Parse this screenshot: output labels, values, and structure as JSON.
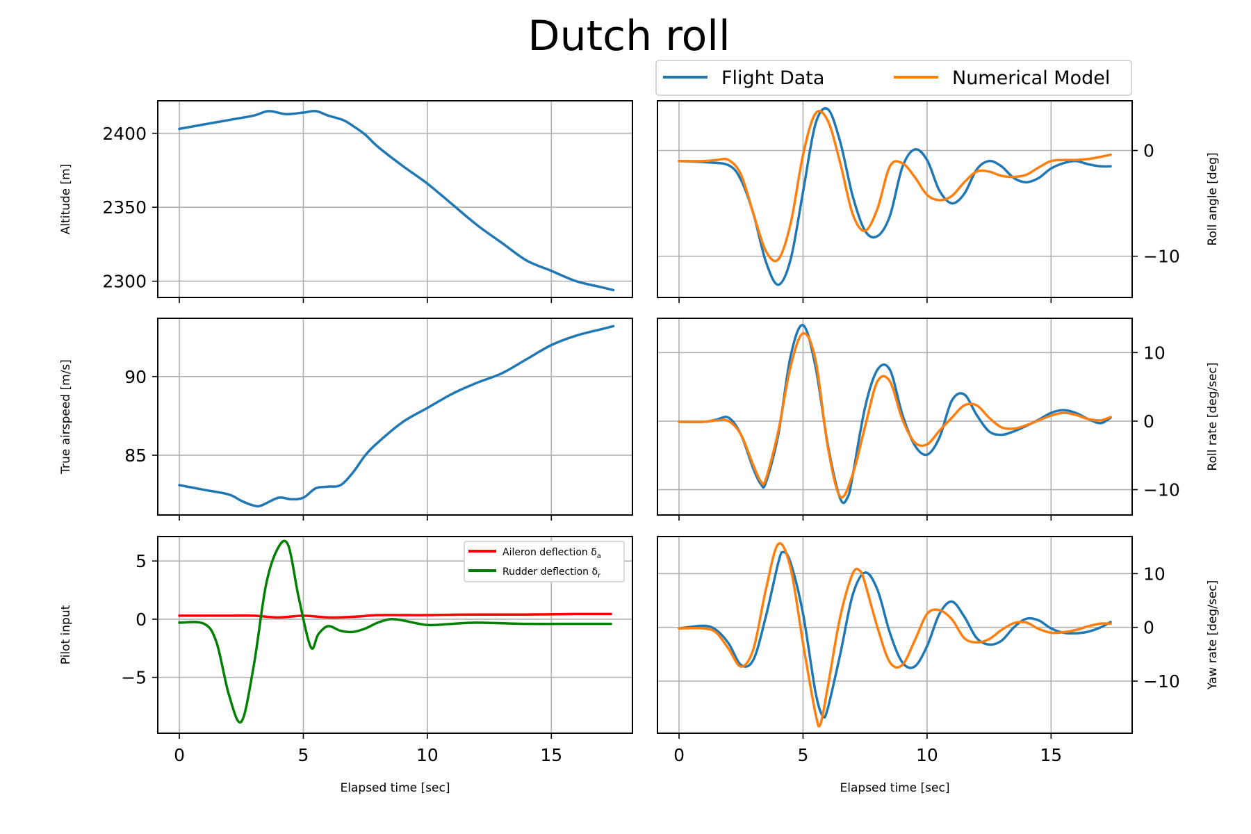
{
  "title": "Dutch roll",
  "legend_main": [
    {
      "label": "Flight Data",
      "color": "#1f77b4"
    },
    {
      "label": "Numerical Model",
      "color": "#ff7f0e"
    }
  ],
  "legend_pilot": [
    {
      "label": "Aileron deflection δ",
      "sub": "a",
      "color": "#ff0000"
    },
    {
      "label": "Rudder deflection δ",
      "sub": "r",
      "color": "#008000"
    }
  ],
  "chart_data": [
    {
      "id": "altitude",
      "type": "line",
      "ylabel": "Altitude [m]",
      "xlim": [
        -0.87,
        18.27
      ],
      "ylim": [
        2289,
        2422
      ],
      "yticks": [
        2300,
        2350,
        2400
      ],
      "ytick_labels": [
        "2300",
        "2350",
        "2400"
      ],
      "grid": true,
      "series": [
        {
          "name": "Flight Data",
          "color": "#1f77b4",
          "x": [
            0,
            1,
            2,
            3,
            3.6,
            4.3,
            5,
            5.5,
            6,
            6.6,
            7,
            7.5,
            8,
            9,
            10,
            11,
            12,
            13,
            14,
            15,
            16,
            17,
            17.5
          ],
          "y": [
            2403,
            2406,
            2409,
            2412,
            2415,
            2413,
            2414,
            2415,
            2412,
            2409,
            2405,
            2399,
            2391,
            2378,
            2366,
            2352,
            2338,
            2326,
            2314,
            2307,
            2300,
            2296,
            2294
          ]
        }
      ]
    },
    {
      "id": "roll-angle",
      "type": "line",
      "ylabel": "Roll angle [deg]",
      "xlim": [
        -0.87,
        18.27
      ],
      "ylim": [
        -13.9,
        4.7
      ],
      "yticks": [
        -10,
        0
      ],
      "ytick_labels": [
        "−10",
        "0"
      ],
      "grid": true,
      "series": [
        {
          "name": "Flight Data",
          "color": "#1f77b4",
          "x": [
            0,
            1,
            2,
            2.5,
            3,
            3.5,
            4,
            4.5,
            5,
            5.5,
            6,
            6.5,
            7,
            7.5,
            8,
            8.5,
            9,
            9.5,
            10,
            10.5,
            11,
            11.5,
            12,
            12.5,
            13,
            13.5,
            14,
            14.5,
            15,
            15.5,
            16,
            16.5,
            17,
            17.4
          ],
          "y": [
            -1,
            -1.1,
            -1.4,
            -2.8,
            -6,
            -10.5,
            -12.7,
            -10.3,
            -3.9,
            2.5,
            3.9,
            0.8,
            -4.3,
            -7.6,
            -8.1,
            -6.2,
            -1.6,
            0.1,
            -0.9,
            -3.8,
            -5,
            -4.1,
            -1.8,
            -1.0,
            -1.5,
            -2.6,
            -3,
            -2.6,
            -1.7,
            -1.2,
            -1.0,
            -1.3,
            -1.5,
            -1.5
          ]
        },
        {
          "name": "Numerical Model",
          "color": "#ff7f0e",
          "x": [
            0,
            1,
            1.5,
            2,
            2.5,
            3,
            3.5,
            4,
            4.5,
            5,
            5.5,
            6,
            6.5,
            7,
            7.5,
            8,
            8.5,
            9,
            9.5,
            10,
            10.5,
            11,
            11.5,
            12,
            12.5,
            13,
            13.5,
            14,
            14.5,
            15,
            15.5,
            16,
            16.5,
            17,
            17.4
          ],
          "y": [
            -1,
            -1,
            -0.9,
            -0.9,
            -2.3,
            -6,
            -9.5,
            -10.3,
            -6.9,
            -0.4,
            3.5,
            2.8,
            -1.2,
            -6,
            -7.6,
            -5.5,
            -1.5,
            -1.2,
            -2.5,
            -4.2,
            -4.7,
            -4.3,
            -3,
            -2.0,
            -2.0,
            -2.4,
            -2.5,
            -2.3,
            -1.6,
            -1.0,
            -0.9,
            -0.9,
            -0.8,
            -0.6,
            -0.4
          ]
        }
      ]
    },
    {
      "id": "airspeed",
      "type": "line",
      "ylabel": "True airspeed [m/s]",
      "xlim": [
        -0.87,
        18.27
      ],
      "ylim": [
        81.2,
        93.7
      ],
      "yticks": [
        85,
        90
      ],
      "ytick_labels": [
        "85",
        "90"
      ],
      "grid": true,
      "series": [
        {
          "name": "Flight Data",
          "color": "#1f77b4",
          "x": [
            0,
            1,
            2,
            2.5,
            3,
            3.3,
            4,
            4.5,
            5,
            5.5,
            6,
            6.5,
            7,
            7.5,
            8,
            9,
            10,
            11,
            12,
            13,
            14,
            15,
            16,
            17,
            17.5
          ],
          "y": [
            83.1,
            82.8,
            82.5,
            82.1,
            81.8,
            81.8,
            82.3,
            82.2,
            82.3,
            82.9,
            83.0,
            83.1,
            83.9,
            85.0,
            85.8,
            87.1,
            88.0,
            88.9,
            89.6,
            90.2,
            91.1,
            92.0,
            92.6,
            93.0,
            93.2
          ]
        }
      ]
    },
    {
      "id": "roll-rate",
      "type": "line",
      "ylabel": "Roll rate [deg/sec]",
      "xlim": [
        -0.87,
        18.27
      ],
      "ylim": [
        -13.7,
        15.0
      ],
      "yticks": [
        -10,
        0,
        10
      ],
      "ytick_labels": [
        "−10",
        "0",
        "10"
      ],
      "grid": true,
      "series": [
        {
          "name": "Flight Data",
          "color": "#1f77b4",
          "x": [
            0,
            1,
            1.5,
            2,
            2.5,
            3,
            3.3,
            3.5,
            4,
            4.5,
            5,
            5.5,
            6,
            6.5,
            6.8,
            7,
            7.5,
            8,
            8.5,
            9,
            9.5,
            10,
            10.5,
            11,
            11.5,
            12,
            12.5,
            13,
            13.5,
            14,
            14.5,
            15,
            15.5,
            16,
            16.5,
            17,
            17.4
          ],
          "y": [
            -0.1,
            -0.1,
            0.2,
            0.5,
            -2,
            -7,
            -9.2,
            -9,
            -2,
            9.5,
            14,
            8,
            -3.5,
            -11.3,
            -11.1,
            -8,
            2,
            7.5,
            7.5,
            1,
            -3.5,
            -4.9,
            -2.4,
            3.0,
            3.9,
            0.9,
            -1.5,
            -2.0,
            -1.5,
            -0.7,
            0.2,
            1.2,
            1.6,
            1.2,
            0.3,
            -0.3,
            0.5
          ]
        },
        {
          "name": "Numerical Model",
          "color": "#ff7f0e",
          "x": [
            0,
            1,
            1.5,
            2,
            2.5,
            3,
            3.3,
            3.5,
            4,
            4.5,
            5,
            5.5,
            6,
            6.5,
            7,
            7.5,
            8,
            8.5,
            9,
            9.5,
            10,
            10.5,
            11,
            11.5,
            12,
            12.5,
            13,
            13.5,
            14,
            14.5,
            15,
            15.5,
            16,
            16.5,
            17,
            17.4
          ],
          "y": [
            -0.1,
            -0.1,
            0.1,
            0,
            -2,
            -6.5,
            -8.8,
            -8.5,
            -1.5,
            8,
            12.8,
            9,
            -3.8,
            -11,
            -7.8,
            -0.8,
            5.8,
            5.8,
            0.3,
            -3.1,
            -3.4,
            -1.4,
            0.5,
            2.3,
            2.3,
            0.5,
            -0.9,
            -1.1,
            -0.6,
            0.1,
            0.8,
            1.2,
            0.9,
            0.3,
            0.1,
            0.6
          ]
        }
      ]
    },
    {
      "id": "pilot-input",
      "type": "line",
      "ylabel": "Pilot input",
      "xlim": [
        -0.87,
        18.27
      ],
      "ylim": [
        -9.8,
        7.1
      ],
      "yticks": [
        -5,
        0,
        5
      ],
      "ytick_labels": [
        "−5",
        "0",
        "5"
      ],
      "xticks": [
        0,
        5,
        10,
        15
      ],
      "xtick_labels": [
        "0",
        "5",
        "10",
        "15"
      ],
      "xlabel": "Elapsed time [sec]",
      "grid": true,
      "legend_position": "upper right",
      "series": [
        {
          "name": "Aileron deflection δa",
          "color": "#ff0000",
          "x": [
            0,
            2,
            3,
            4,
            5,
            6,
            7,
            8,
            9,
            10,
            12,
            14,
            16,
            17.4
          ],
          "y": [
            0.3,
            0.3,
            0.3,
            0.15,
            0.3,
            0.15,
            0.2,
            0.35,
            0.35,
            0.35,
            0.4,
            0.4,
            0.45,
            0.45
          ]
        },
        {
          "name": "Rudder deflection δr",
          "color": "#008000",
          "x": [
            0,
            1,
            1.5,
            2,
            2.5,
            3,
            3.5,
            4,
            4.4,
            4.8,
            5.3,
            5.6,
            6,
            6.5,
            7,
            7.5,
            8,
            8.5,
            9,
            10,
            11,
            12,
            14,
            16,
            17.4
          ],
          "y": [
            -0.3,
            -0.4,
            -2,
            -6.5,
            -8.8,
            -4,
            3,
            6.2,
            6.3,
            2,
            -2.4,
            -1.3,
            -0.6,
            -1.0,
            -1.1,
            -0.8,
            -0.3,
            0.0,
            -0.1,
            -0.5,
            -0.4,
            -0.3,
            -0.4,
            -0.4,
            -0.4
          ]
        }
      ]
    },
    {
      "id": "yaw-rate",
      "type": "line",
      "ylabel": "Yaw rate [deg/sec]",
      "xlim": [
        -0.87,
        18.27
      ],
      "ylim": [
        -19.7,
        16.9
      ],
      "yticks": [
        -10,
        0,
        10
      ],
      "ytick_labels": [
        "−10",
        "0",
        "10"
      ],
      "xticks": [
        0,
        5,
        10,
        15
      ],
      "xtick_labels": [
        "0",
        "5",
        "10",
        "15"
      ],
      "xlabel": "Elapsed time [sec]",
      "grid": true,
      "series": [
        {
          "name": "Flight Data",
          "color": "#1f77b4",
          "x": [
            0,
            1,
            1.5,
            2,
            2.5,
            3,
            3.5,
            4,
            4.2,
            4.5,
            5,
            5.5,
            5.8,
            6,
            6.5,
            7,
            7.5,
            8,
            8.5,
            9,
            9.5,
            10,
            10.5,
            11,
            11.5,
            12,
            12.5,
            13,
            13.5,
            14,
            14.5,
            15,
            15.5,
            16,
            16.5,
            17,
            17.4
          ],
          "y": [
            -0.2,
            0.3,
            -0.5,
            -3,
            -7,
            -6,
            2,
            12,
            14,
            12,
            2.5,
            -12,
            -16.5,
            -15,
            -5,
            6,
            10.2,
            7,
            -1,
            -6.5,
            -7.3,
            -3.5,
            2.5,
            4.8,
            2,
            -2,
            -3.2,
            -2.5,
            0,
            1.6,
            1.3,
            -0.2,
            -1,
            -1.1,
            -0.8,
            0,
            1
          ]
        },
        {
          "name": "Numerical Model",
          "color": "#ff7f0e",
          "x": [
            0,
            1,
            1.5,
            2,
            2.5,
            3,
            3.5,
            4,
            4.5,
            5,
            5.5,
            5.7,
            6,
            6.5,
            7,
            7.3,
            7.5,
            8,
            8.5,
            9,
            9.5,
            10,
            10.5,
            11,
            11.5,
            12,
            12.5,
            13,
            13.5,
            14,
            14.5,
            15,
            15.5,
            16,
            16.5,
            17,
            17.4
          ],
          "y": [
            -0.2,
            -0.2,
            -1,
            -4,
            -7.3,
            -4,
            7,
            15.5,
            11,
            -3,
            -16,
            -18,
            -11,
            2,
            10,
            10.5,
            8.2,
            0,
            -6.5,
            -7,
            -2.5,
            2.5,
            3.2,
            1.5,
            -2,
            -2.8,
            -2.2,
            -0.5,
            0.8,
            0.9,
            -0.3,
            -1,
            -0.9,
            -0.5,
            0.2,
            0.7,
            0.7
          ]
        }
      ]
    }
  ]
}
